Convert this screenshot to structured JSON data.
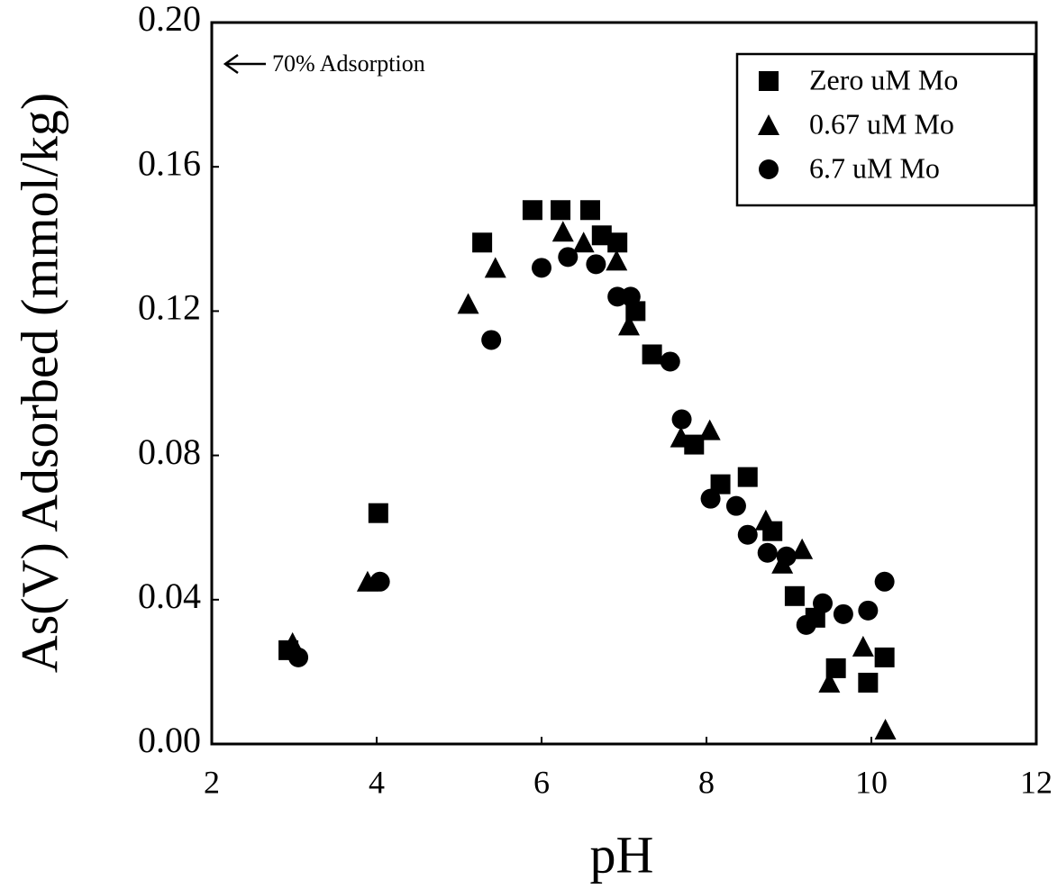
{
  "chart_data": {
    "type": "scatter",
    "x_label": "pH",
    "y_label": "As(V) Adsorbed (mmol/kg)",
    "annotation": "70% Adsorption",
    "xlim": [
      2,
      12
    ],
    "ylim": [
      0,
      0.2
    ],
    "xticks": [
      2,
      4,
      6,
      8,
      10,
      12
    ],
    "yticks": [
      {
        "value": 0,
        "label": "0.00"
      },
      0.04,
      0.08,
      0.12,
      0.16,
      {
        "value": 0.2,
        "label": "0.20"
      }
    ],
    "legend": "upper right",
    "series": [
      {
        "name": "Zero uM Mo",
        "color": "#000000",
        "marker": "square",
        "x": [
          2.93,
          4.02,
          5.28,
          5.89,
          6.23,
          6.59,
          6.73,
          6.92,
          7.14,
          7.34,
          7.85,
          8.17,
          8.5,
          8.8,
          9.07,
          9.32,
          9.57,
          9.96,
          10.16
        ],
        "values": [
          0.026,
          0.064,
          0.139,
          0.148,
          0.148,
          0.148,
          0.141,
          0.139,
          0.12,
          0.108,
          0.083,
          0.072,
          0.074,
          0.059,
          0.041,
          0.035,
          0.021,
          0.017,
          0.024
        ]
      },
      {
        "name": "0.67 uM Mo",
        "color": "#000000",
        "marker": "triangle",
        "x": [
          2.98,
          3.89,
          5.11,
          5.44,
          6.26,
          6.51,
          6.91,
          7.06,
          7.69,
          8.04,
          8.72,
          8.92,
          9.16,
          9.49,
          9.9,
          10.17
        ],
        "values": [
          0.028,
          0.045,
          0.122,
          0.132,
          0.142,
          0.139,
          0.134,
          0.116,
          0.085,
          0.087,
          0.062,
          0.05,
          0.054,
          0.017,
          0.027,
          0.004
        ]
      },
      {
        "name": "6.7 uM Mo",
        "color": "#000000",
        "marker": "circle",
        "x": [
          3.05,
          4.04,
          5.39,
          6.0,
          6.32,
          6.66,
          6.92,
          7.08,
          7.56,
          7.7,
          8.05,
          8.36,
          8.5,
          8.74,
          8.97,
          9.21,
          9.41,
          9.66,
          9.96,
          10.16
        ],
        "values": [
          0.024,
          0.045,
          0.112,
          0.132,
          0.135,
          0.133,
          0.124,
          0.124,
          0.106,
          0.09,
          0.068,
          0.066,
          0.058,
          0.053,
          0.052,
          0.033,
          0.039,
          0.036,
          0.037,
          0.045
        ]
      }
    ]
  }
}
